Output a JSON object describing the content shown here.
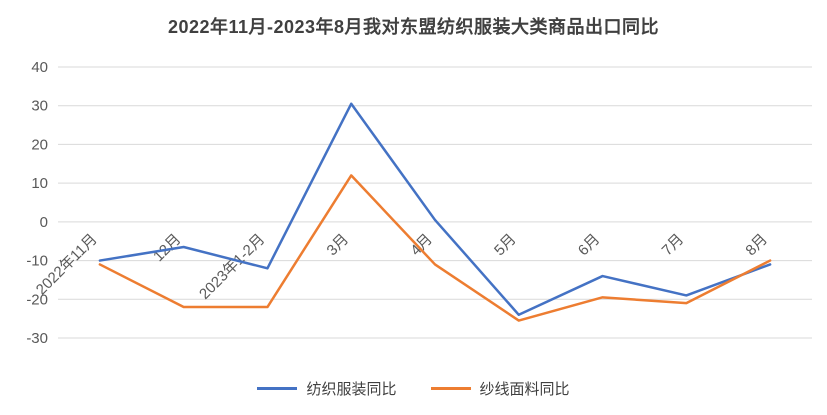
{
  "chart_data": {
    "type": "line",
    "title": "2022年11月-2023年8月我对东盟纺织服装大类商品出口同比",
    "categories": [
      "2022年11月",
      "12月",
      "2023年1-2月",
      "3月",
      "4月",
      "5月",
      "6月",
      "7月",
      "8月"
    ],
    "series": [
      {
        "name": "纺织服装同比",
        "color": "#4472C4",
        "values": [
          -10,
          -6.5,
          -12,
          30.5,
          0.5,
          -24,
          -14,
          -19,
          -11
        ]
      },
      {
        "name": "纱线面料同比",
        "color": "#ED7D31",
        "values": [
          -11,
          -22,
          -22,
          12,
          -11,
          -25.5,
          -19.5,
          -21,
          -10
        ]
      }
    ],
    "xlabel": "",
    "ylabel": "",
    "ylim": [
      -30,
      40
    ],
    "yticks": [
      40,
      30,
      20,
      10,
      0,
      -10,
      -20,
      -30
    ],
    "grid": true,
    "legend_position": "bottom",
    "colors": {
      "gridline": "#D9D9D9",
      "tick_label": "#595959",
      "title": "#404040"
    }
  }
}
